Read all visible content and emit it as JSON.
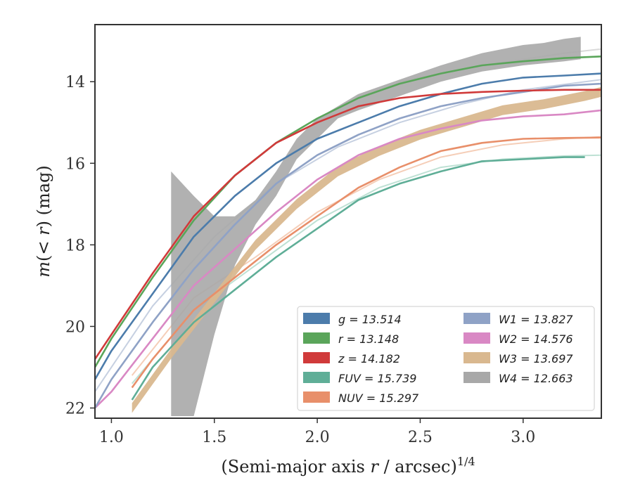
{
  "chart_data": {
    "type": "line",
    "xlabel": "(Semi-major axis r / arcsec)^1/4",
    "xlabel_parts": {
      "main": "(Semi-major axis ",
      "var": "r",
      "rest": " / arcsec)",
      "sup": "1/4"
    },
    "ylabel": "m(< r) (mag)",
    "ylabel_parts": {
      "m": "m",
      "open": "(",
      "lt": "< ",
      "r": "r",
      "close": ")",
      "unit": " (mag)"
    },
    "xlim": [
      0.92,
      3.38
    ],
    "ylim": [
      22.25,
      12.6
    ],
    "y_inverted": true,
    "xticks": [
      1.0,
      1.5,
      2.0,
      2.5,
      3.0
    ],
    "xtick_labels": [
      "1.0",
      "1.5",
      "2.0",
      "2.5",
      "3.0"
    ],
    "yticks": [
      14,
      16,
      18,
      20,
      22
    ],
    "ytick_labels": [
      "14",
      "16",
      "18",
      "20",
      "22"
    ],
    "legend_placement": "lower-right",
    "legend_columns": 2,
    "series": [
      {
        "name": "g",
        "label": "g = 13.514",
        "color": "#4c7cab",
        "kind": "line",
        "x": [
          0.92,
          1.0,
          1.2,
          1.4,
          1.6,
          1.8,
          2.0,
          2.2,
          2.4,
          2.6,
          2.8,
          3.0,
          3.2,
          3.38
        ],
        "y": [
          21.3,
          20.6,
          19.2,
          17.8,
          16.8,
          16.0,
          15.4,
          15.0,
          14.6,
          14.3,
          14.05,
          13.9,
          13.85,
          13.8
        ]
      },
      {
        "name": "r",
        "label": "r = 13.148",
        "color": "#5aa55a",
        "kind": "line",
        "x": [
          0.92,
          1.0,
          1.2,
          1.4,
          1.6,
          1.8,
          2.0,
          2.2,
          2.4,
          2.6,
          2.8,
          3.0,
          3.2,
          3.38
        ],
        "y": [
          21.0,
          20.3,
          18.8,
          17.4,
          16.3,
          15.5,
          14.9,
          14.4,
          14.05,
          13.8,
          13.6,
          13.5,
          13.42,
          13.38
        ]
      },
      {
        "name": "z",
        "label": "z = 14.182",
        "color": "#d03a3a",
        "kind": "line",
        "x": [
          0.92,
          1.0,
          1.2,
          1.4,
          1.6,
          1.8,
          2.0,
          2.2,
          2.4,
          2.6,
          2.8,
          3.0,
          3.2,
          3.38
        ],
        "y": [
          20.8,
          20.2,
          18.7,
          17.3,
          16.3,
          15.5,
          15.0,
          14.6,
          14.4,
          14.3,
          14.25,
          14.22,
          14.2,
          14.2
        ]
      },
      {
        "name": "FUV",
        "label": "FUV = 15.739",
        "color": "#5fae97",
        "kind": "line",
        "x": [
          1.1,
          1.2,
          1.4,
          1.6,
          1.8,
          2.0,
          2.2,
          2.4,
          2.6,
          2.8,
          3.0,
          3.2,
          3.3
        ],
        "y": [
          21.8,
          21.0,
          19.9,
          19.1,
          18.3,
          17.6,
          16.9,
          16.5,
          16.2,
          15.95,
          15.9,
          15.85,
          15.85
        ]
      },
      {
        "name": "NUV",
        "label": "NUV = 15.297",
        "color": "#e88f6a",
        "kind": "line",
        "x": [
          1.1,
          1.2,
          1.4,
          1.6,
          1.8,
          2.0,
          2.2,
          2.4,
          2.6,
          2.8,
          3.0,
          3.2,
          3.38
        ],
        "y": [
          21.5,
          20.8,
          19.6,
          18.8,
          18.0,
          17.3,
          16.6,
          16.1,
          15.7,
          15.5,
          15.4,
          15.38,
          15.37
        ]
      },
      {
        "name": "W1",
        "label": "W1 = 13.827",
        "color": "#8fa2c6",
        "kind": "line",
        "x": [
          0.92,
          1.0,
          1.2,
          1.4,
          1.6,
          1.8,
          2.0,
          2.2,
          2.4,
          2.6,
          2.8,
          3.0,
          3.2,
          3.38
        ],
        "y": [
          22.0,
          21.3,
          19.9,
          18.6,
          17.5,
          16.5,
          15.8,
          15.3,
          14.9,
          14.6,
          14.4,
          14.25,
          14.1,
          14.05
        ]
      },
      {
        "name": "W2",
        "label": "W2 = 14.576",
        "color": "#d988c4",
        "kind": "line",
        "x": [
          0.92,
          1.0,
          1.2,
          1.4,
          1.6,
          1.8,
          2.0,
          2.2,
          2.4,
          2.6,
          2.8,
          3.0,
          3.2,
          3.38
        ],
        "y": [
          22.0,
          21.6,
          20.3,
          19.0,
          18.1,
          17.2,
          16.4,
          15.8,
          15.4,
          15.15,
          14.95,
          14.85,
          14.8,
          14.7
        ]
      },
      {
        "name": "W3",
        "label": "W3 = 13.697",
        "color": "#d9b88f",
        "kind": "band",
        "x": [
          1.1,
          1.3,
          1.5,
          1.7,
          1.9,
          2.1,
          2.3,
          2.5,
          2.7,
          2.9,
          3.1,
          3.3,
          3.38
        ],
        "y": [
          22.0,
          20.6,
          19.3,
          18.0,
          17.0,
          16.2,
          15.7,
          15.3,
          15.0,
          14.7,
          14.55,
          14.35,
          14.25
        ],
        "band_width": 0.12
      },
      {
        "name": "W4",
        "label": "W4 = 12.663",
        "color": "#a8a8a8",
        "kind": "band",
        "x": [
          1.29,
          1.4,
          1.5,
          1.6,
          1.7,
          1.8,
          1.9,
          2.0,
          2.1,
          2.2,
          2.4,
          2.6,
          2.8,
          3.0,
          3.1,
          3.2,
          3.28
        ],
        "y_low": [
          22.2,
          22.2,
          20.2,
          18.5,
          17.5,
          16.8,
          15.9,
          15.4,
          14.9,
          14.7,
          14.35,
          14.0,
          13.75,
          13.6,
          13.55,
          13.5,
          13.45
        ],
        "y_high": [
          16.2,
          16.8,
          17.3,
          17.3,
          16.9,
          16.2,
          15.4,
          14.9,
          14.6,
          14.3,
          13.95,
          13.6,
          13.3,
          13.1,
          13.05,
          12.95,
          12.9
        ]
      }
    ],
    "faint_series": [
      {
        "color": "#b8c4da",
        "x": [
          0.92,
          1.2,
          1.5,
          1.8,
          2.1,
          2.4,
          2.7,
          3.0,
          3.38
        ],
        "y": [
          21.6,
          19.5,
          17.8,
          16.5,
          15.6,
          15.0,
          14.55,
          14.2,
          13.95
        ]
      },
      {
        "color": "#aed9c9",
        "x": [
          1.1,
          1.4,
          1.7,
          2.0,
          2.3,
          2.6,
          2.9,
          3.2,
          3.38
        ],
        "y": [
          21.4,
          19.6,
          18.5,
          17.4,
          16.6,
          16.1,
          15.9,
          15.82,
          15.8
        ]
      },
      {
        "color": "#f3c2a6",
        "x": [
          1.1,
          1.4,
          1.7,
          2.0,
          2.3,
          2.6,
          2.9,
          3.2,
          3.38
        ],
        "y": [
          21.2,
          19.3,
          18.3,
          17.2,
          16.4,
          15.85,
          15.55,
          15.4,
          15.35
        ]
      },
      {
        "color": "#cfcfcf",
        "x": [
          2.4,
          2.7,
          3.0,
          3.2,
          3.38
        ],
        "y": [
          14.0,
          13.7,
          13.45,
          13.3,
          13.2
        ]
      }
    ]
  }
}
